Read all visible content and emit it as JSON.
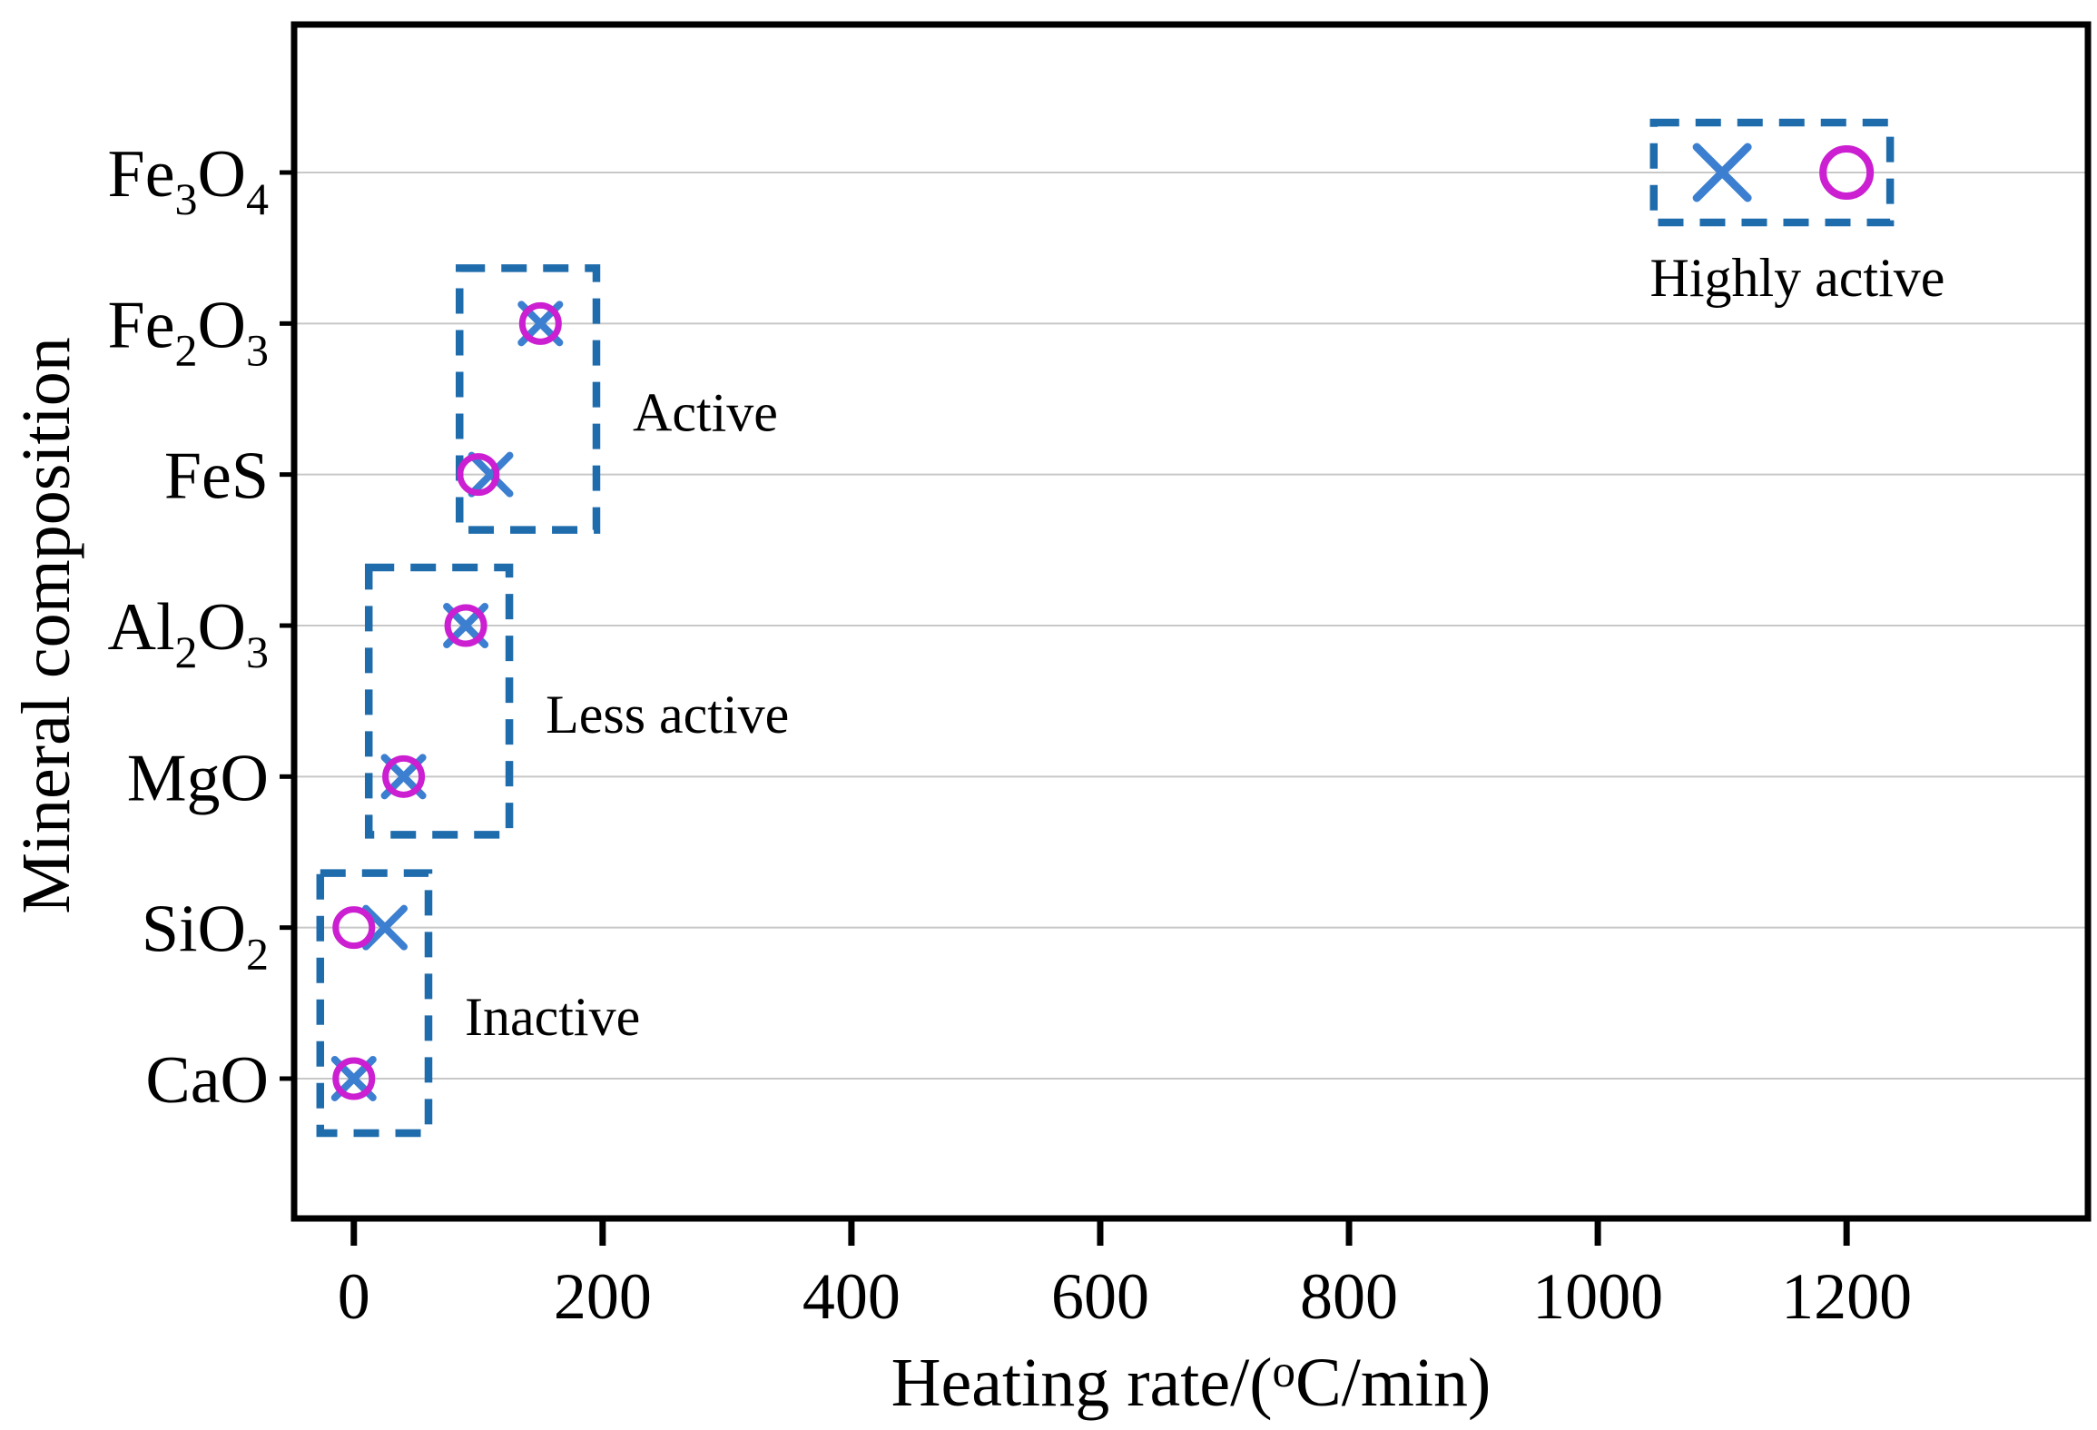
{
  "chart_data": {
    "type": "scatter",
    "title": "",
    "xlabel": "Heating rate/(oC/min)",
    "xlabel_parts": [
      {
        "text": "Heating rate/("
      },
      {
        "text": "o",
        "style": "sup"
      },
      {
        "text": "C/min)"
      }
    ],
    "ylabel": "Mineral composition",
    "categories": [
      "Fe3O4",
      "Fe2O3",
      "FeS",
      "Al2O3",
      "MgO",
      "SiO2",
      "CaO"
    ],
    "category_label_parts": [
      [
        {
          "text": "Fe"
        },
        {
          "text": "3",
          "style": "sub"
        },
        {
          "text": "O"
        },
        {
          "text": "4",
          "style": "sub"
        }
      ],
      [
        {
          "text": "Fe"
        },
        {
          "text": "2",
          "style": "sub"
        },
        {
          "text": "O"
        },
        {
          "text": "3",
          "style": "sub"
        }
      ],
      [
        {
          "text": "FeS"
        }
      ],
      [
        {
          "text": "Al"
        },
        {
          "text": "2",
          "style": "sub"
        },
        {
          "text": "O"
        },
        {
          "text": "3",
          "style": "sub"
        }
      ],
      [
        {
          "text": "MgO"
        }
      ],
      [
        {
          "text": "SiO"
        },
        {
          "text": "2",
          "style": "sub"
        }
      ],
      [
        {
          "text": "CaO"
        }
      ]
    ],
    "x_ticks": [
      0,
      200,
      400,
      600,
      800,
      1000,
      1200
    ],
    "xlim": [
      -48,
      1394
    ],
    "grid": "horizontal-only",
    "legend": "none",
    "series": [
      {
        "name": "X markers",
        "marker": "x",
        "color": "#3c7fd0",
        "values": [
          1100,
          150,
          110,
          90,
          40,
          25,
          0
        ]
      },
      {
        "name": "O markers",
        "marker": "circle",
        "color": "#cb1fd1",
        "values": [
          1200,
          150,
          100,
          90,
          40,
          0,
          0
        ]
      }
    ],
    "annotations": [
      {
        "label": "Highly active",
        "x_range": [
          1045,
          1235
        ],
        "categories": [
          "Fe3O4",
          "Fe3O4"
        ],
        "label_position": "below"
      },
      {
        "label": "Active",
        "x_range": [
          85,
          195
        ],
        "categories": [
          "Fe2O3",
          "FeS"
        ],
        "label_position": "right"
      },
      {
        "label": "Less active",
        "x_range": [
          12,
          125
        ],
        "categories": [
          "Al2O3",
          "MgO"
        ],
        "label_position": "right"
      },
      {
        "label": "Inactive",
        "x_range": [
          -27,
          60
        ],
        "categories": [
          "SiO2",
          "CaO"
        ],
        "label_position": "right"
      }
    ],
    "colors": {
      "annotation_box": "#1f6cad",
      "gridline": "#c8c8c8",
      "axis": "#000000",
      "background": "#ffffff"
    }
  }
}
